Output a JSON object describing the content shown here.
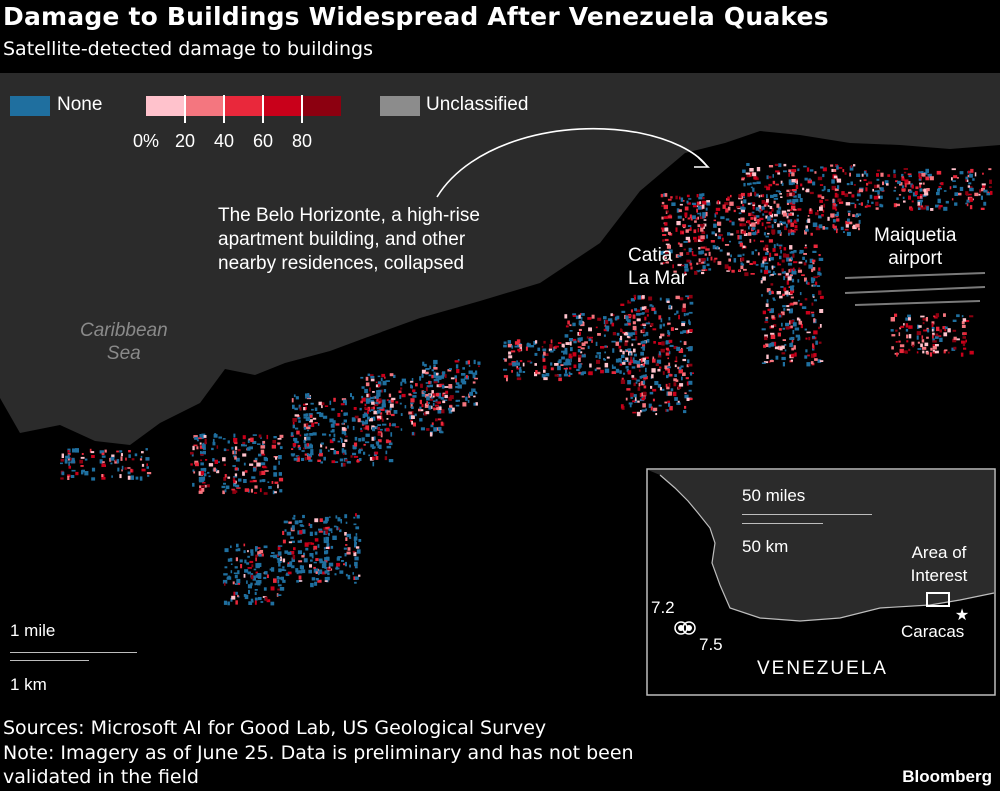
{
  "title": "Damage to Buildings Widespread After Venezuela Quakes",
  "subtitle": "Satellite-detected damage to buildings",
  "legend": {
    "none_label": "None",
    "none_color": "#1f6f9f",
    "damage_colors": [
      "#ffc2cc",
      "#f4767f",
      "#e9283b",
      "#c9001a",
      "#8c0010"
    ],
    "ticks": [
      "0%",
      "20",
      "40",
      "60",
      "80"
    ],
    "unclassified_label": "Unclassified",
    "unclassified_color": "#8c8c8c"
  },
  "map": {
    "sea_label": "Caribbean Sea",
    "annotation": [
      "The Belo Horizonte, a high-rise",
      "apartment building, and other",
      "nearby residences, collapsed"
    ],
    "place_catia": "Catia\nLa Mar",
    "place_airport": "Maiquetia\nairport",
    "scale_mile": "1 mile",
    "scale_km": "1 km"
  },
  "inset": {
    "scale_miles": "50 miles",
    "scale_km": "50 km",
    "area_label": "Area of Interest",
    "city": "Caracas",
    "country": "VENEZUELA",
    "quake_a": "7.2",
    "quake_b": "7.5"
  },
  "footer": {
    "sources": "Sources: Microsoft AI for Good Lab, US Geological Survey",
    "note_line1": "Note: Imagery as of June 25. Data is preliminary and has not been",
    "note_line2": "validated in the field",
    "brand": "Bloomberg"
  }
}
